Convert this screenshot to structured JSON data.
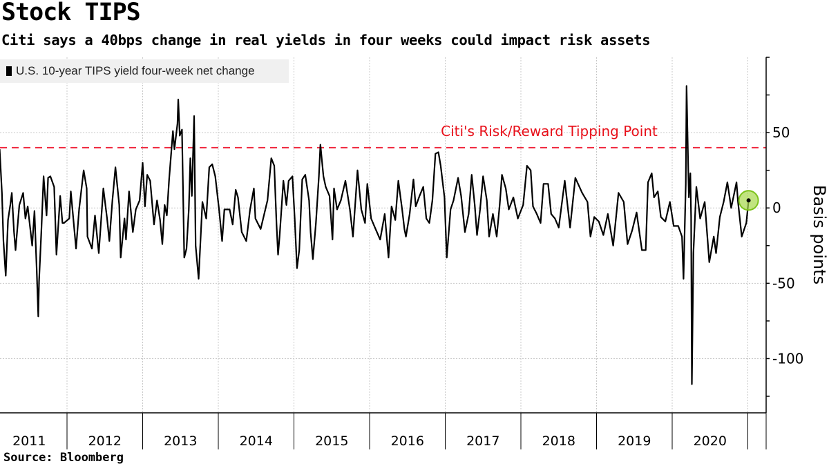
{
  "header": {
    "title": "Stock TIPS",
    "subtitle": "Citi says a 40bps change in real yields in four weeks could impact risk assets"
  },
  "footer": {
    "source": "Source: Bloomberg"
  },
  "chart_data": {
    "type": "line",
    "title": "Stock TIPS",
    "subtitle": "Citi says a 40bps change in real yields in four weeks could impact risk assets",
    "ylabel": "Basis points",
    "xlabel": "",
    "legend": {
      "position": "top-left",
      "entries": [
        "U.S. 10-year TIPS yield four-week net change"
      ]
    },
    "grid": true,
    "y_axis_side": "right",
    "ylim": [
      -136,
      100
    ],
    "xlim": [
      2011.11,
      2021.2
    ],
    "y_ticks": [
      50,
      0,
      -50,
      -100
    ],
    "y_tick_labels": [
      "50",
      "0",
      "-50",
      "-100"
    ],
    "x_tick_labels": [
      "2011",
      "2012",
      "2013",
      "2014",
      "2015",
      "2016",
      "2017",
      "2018",
      "2019",
      "2020"
    ],
    "reference_line": {
      "value": 40,
      "label": "Citi's Risk/Reward Tipping Point",
      "color": "#f0263c",
      "style": "dashed"
    },
    "highlight": {
      "x": 2021.01,
      "y": 5,
      "color": "#a6d84a"
    },
    "series": [
      {
        "name": "U.S. 10-year TIPS yield four-week net change",
        "color": "#000000",
        "x": [
          2011.11,
          2011.14,
          2011.16,
          2011.19,
          2011.22,
          2011.25,
          2011.27,
          2011.3,
          2011.32,
          2011.37,
          2011.42,
          2011.45,
          2011.48,
          2011.54,
          2011.57,
          2011.6,
          2011.62,
          2011.63,
          2011.66,
          2011.69,
          2011.73,
          2011.75,
          2011.78,
          2011.83,
          2011.86,
          2011.91,
          2011.94,
          2011.96,
          2012.03,
          2012.05,
          2012.12,
          2012.16,
          2012.22,
          2012.26,
          2012.27,
          2012.33,
          2012.37,
          2012.42,
          2012.48,
          2012.53,
          2012.56,
          2012.6,
          2012.64,
          2012.69,
          2012.71,
          2012.76,
          2012.78,
          2012.82,
          2012.87,
          2012.91,
          2012.96,
          2013.0,
          2013.03,
          2013.06,
          2013.1,
          2013.15,
          2013.19,
          2013.23,
          2013.26,
          2013.29,
          2013.32,
          2013.35,
          2013.4,
          2013.42,
          2013.46,
          2013.47,
          2013.49,
          2013.52,
          2013.55,
          2013.58,
          2013.61,
          2013.63,
          2013.65,
          2013.68,
          2013.7,
          2013.74,
          2013.79,
          2013.84,
          2013.88,
          2013.92,
          2013.96,
          2014.01,
          2014.05,
          2014.08,
          2014.15,
          2014.19,
          2014.23,
          2014.26,
          2014.31,
          2014.37,
          2014.42,
          2014.47,
          2014.49,
          2014.56,
          2014.65,
          2014.7,
          2014.74,
          2014.77,
          2014.79,
          2014.81,
          2014.86,
          2014.9,
          2014.93,
          2014.98,
          2015.01,
          2015.04,
          2015.07,
          2015.11,
          2015.15,
          2015.2,
          2015.22,
          2015.25,
          2015.29,
          2015.33,
          2015.35,
          2015.39,
          2015.42,
          2015.47,
          2015.51,
          2015.53,
          2015.57,
          2015.62,
          2015.68,
          2015.74,
          2015.78,
          2015.82,
          2015.84,
          2015.89,
          2015.94,
          2015.97,
          2016.02,
          2016.07,
          2016.14,
          2016.2,
          2016.25,
          2016.29,
          2016.34,
          2016.38,
          2016.43,
          2016.46,
          2016.48,
          2016.53,
          2016.58,
          2016.61,
          2016.66,
          2016.71,
          2016.75,
          2016.79,
          2016.83,
          2016.87,
          2016.91,
          2016.94,
          2016.99,
          2017.02,
          2017.07,
          2017.11,
          2017.17,
          2017.21,
          2017.26,
          2017.31,
          2017.35,
          2017.39,
          2017.42,
          2017.46,
          2017.5,
          2017.55,
          2017.58,
          2017.63,
          2017.68,
          2017.72,
          2017.75,
          2017.8,
          2017.84,
          2017.9,
          2017.96,
          2018.03,
          2018.08,
          2018.13,
          2018.16,
          2018.21,
          2018.26,
          2018.3,
          2018.36,
          2018.4,
          2018.45,
          2018.5,
          2018.58,
          2018.65,
          2018.72,
          2018.81,
          2018.88,
          2018.92,
          2018.97,
          2019.03,
          2019.09,
          2019.15,
          2019.22,
          2019.29,
          2019.36,
          2019.41,
          2019.47,
          2019.53,
          2019.6,
          2019.65,
          2019.68,
          2019.73,
          2019.76,
          2019.81,
          2019.85,
          2019.91,
          2019.97,
          2020.02,
          2020.08,
          2020.13,
          2020.15,
          2020.18,
          2020.19,
          2020.22,
          2020.24,
          2020.25,
          2020.26,
          2020.28,
          2020.32,
          2020.37,
          2020.43,
          2020.49,
          2020.55,
          2020.58,
          2020.63,
          2020.68,
          2020.73,
          2020.78,
          2020.85,
          2020.87,
          2020.92,
          2020.98,
          2021.01
        ],
        "y": [
          39,
          10,
          -22,
          -45,
          -8,
          2,
          10,
          -16,
          -28,
          2,
          10,
          -7,
          1,
          -25,
          -2,
          -42,
          -72,
          -49,
          -16,
          21,
          -5,
          20,
          21,
          14,
          -31,
          8,
          -10,
          -10,
          -7,
          11,
          -27,
          -1,
          25,
          13,
          -19,
          -27,
          -5,
          -30,
          13,
          -7,
          -22,
          5,
          27,
          2,
          -33,
          -7,
          -21,
          11,
          -16,
          -1,
          5,
          30,
          1,
          22,
          18,
          -11,
          5,
          -8,
          -24,
          2,
          -5,
          19,
          51,
          39,
          56,
          72,
          48,
          52,
          -33,
          -27,
          -1,
          33,
          8,
          61,
          -25,
          -47,
          4,
          -7,
          27,
          29,
          21,
          -1,
          -22,
          -1,
          -1,
          -11,
          12,
          7,
          -16,
          -22,
          -1,
          13,
          -7,
          -14,
          5,
          33,
          28,
          -11,
          -31,
          -19,
          18,
          2,
          18,
          21,
          -7,
          -40,
          -28,
          19,
          22,
          5,
          -16,
          -34,
          -10,
          21,
          42,
          21,
          14,
          8,
          -21,
          13,
          -1,
          5,
          18,
          -1,
          -19,
          10,
          25,
          -1,
          -10,
          16,
          -7,
          -13,
          -21,
          -4,
          -33,
          1,
          -8,
          18,
          -1,
          -14,
          -19,
          -4,
          19,
          1,
          8,
          14,
          -7,
          -10,
          5,
          36,
          37,
          28,
          7,
          -33,
          -1,
          5,
          20,
          8,
          -16,
          -4,
          22,
          2,
          -18,
          -1,
          21,
          5,
          -19,
          -4,
          -19,
          2,
          22,
          13,
          -1,
          7,
          -7,
          2,
          28,
          25,
          1,
          -4,
          -10,
          16,
          16,
          -4,
          -7,
          -13,
          18,
          -13,
          20,
          10,
          4,
          -19,
          -6,
          -9,
          -18,
          -4,
          -25,
          10,
          4,
          -24,
          -15,
          -3,
          -28,
          -28,
          17,
          23,
          7,
          11,
          -6,
          -9,
          4,
          -12,
          -12,
          -19,
          -47,
          16,
          81,
          7,
          23,
          -6,
          -117,
          -30,
          14,
          -7,
          4,
          -36,
          -19,
          -30,
          -6,
          4,
          17,
          0,
          17,
          4,
          -19,
          -10,
          5
        ]
      }
    ]
  }
}
